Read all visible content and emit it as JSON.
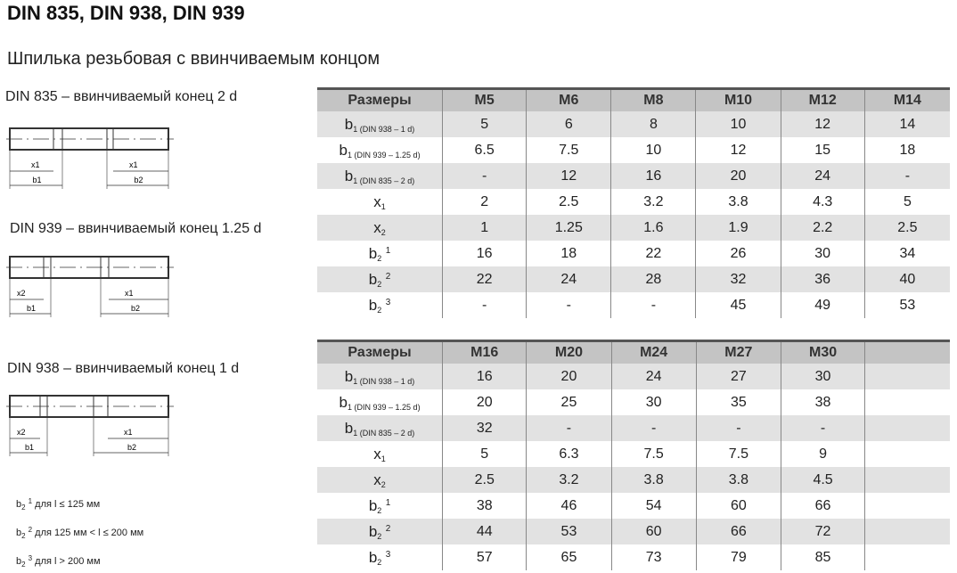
{
  "title": "DIN 835, DIN 938, DIN 939",
  "subtitle": "Шпилька резьбовая с ввинчиваемым концом",
  "drawings": [
    {
      "caption": "DIN 835 – ввинчиваемый конец 2 d",
      "left_x": "x1",
      "left_b": "b1",
      "right_x": "x1",
      "right_b": "b2"
    },
    {
      "caption": "DIN 939 – ввинчиваемый конец 1.25 d",
      "left_x": "x2",
      "left_b": "b1",
      "right_x": "x1",
      "right_b": "b2"
    },
    {
      "caption": "DIN 938 – ввинчиваемый конец 1 d",
      "left_x": "x2",
      "left_b": "b1",
      "right_x": "x1",
      "right_b": "b2"
    }
  ],
  "notes": [
    {
      "sym": "b",
      "sub": "2",
      "sup": "1",
      "text": "для l ≤ 125 мм"
    },
    {
      "sym": "b",
      "sub": "2",
      "sup": "2",
      "text": "для 125 мм < l ≤ 200 мм"
    },
    {
      "sym": "b",
      "sub": "2",
      "sup": "3",
      "text": "для l > 200 мм"
    }
  ],
  "row_labels": [
    {
      "sym": "b",
      "sub": "1 (DIN 938 – 1 d)",
      "sup": ""
    },
    {
      "sym": "b",
      "sub": "1 (DIN 939 – 1.25 d)",
      "sup": ""
    },
    {
      "sym": "b",
      "sub": "1 (DIN 835 – 2 d)",
      "sup": ""
    },
    {
      "sym": "x",
      "sub": "1",
      "sup": ""
    },
    {
      "sym": "x",
      "sub": "2",
      "sup": ""
    },
    {
      "sym": "b",
      "sub": "2",
      "sup": "1"
    },
    {
      "sym": "b",
      "sub": "2",
      "sup": "2"
    },
    {
      "sym": "b",
      "sub": "2",
      "sup": "3"
    }
  ],
  "tables": [
    {
      "header": [
        "Размеры",
        "M5",
        "M6",
        "M8",
        "M10",
        "M12",
        "M14"
      ],
      "rows": [
        [
          "5",
          "6",
          "8",
          "10",
          "12",
          "14"
        ],
        [
          "6.5",
          "7.5",
          "10",
          "12",
          "15",
          "18"
        ],
        [
          "-",
          "12",
          "16",
          "20",
          "24",
          "-"
        ],
        [
          "2",
          "2.5",
          "3.2",
          "3.8",
          "4.3",
          "5"
        ],
        [
          "1",
          "1.25",
          "1.6",
          "1.9",
          "2.2",
          "2.5"
        ],
        [
          "16",
          "18",
          "22",
          "26",
          "30",
          "34"
        ],
        [
          "22",
          "24",
          "28",
          "32",
          "36",
          "40"
        ],
        [
          "-",
          "-",
          "-",
          "45",
          "49",
          "53"
        ]
      ]
    },
    {
      "header": [
        "Размеры",
        "M16",
        "M20",
        "M24",
        "M27",
        "M30",
        ""
      ],
      "rows": [
        [
          "16",
          "20",
          "24",
          "27",
          "30",
          ""
        ],
        [
          "20",
          "25",
          "30",
          "35",
          "38",
          ""
        ],
        [
          "32",
          "-",
          "-",
          "-",
          "-",
          ""
        ],
        [
          "5",
          "6.3",
          "7.5",
          "7.5",
          "9",
          ""
        ],
        [
          "2.5",
          "3.2",
          "3.8",
          "3.8",
          "4.5",
          ""
        ],
        [
          "38",
          "46",
          "54",
          "60",
          "66",
          ""
        ],
        [
          "44",
          "53",
          "60",
          "66",
          "72",
          ""
        ],
        [
          "57",
          "65",
          "73",
          "79",
          "85",
          ""
        ]
      ]
    }
  ]
}
